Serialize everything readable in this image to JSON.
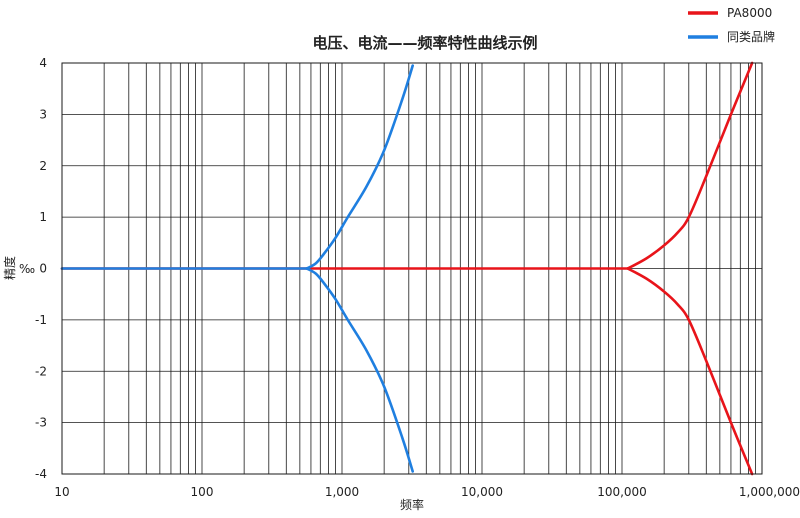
{
  "chart_data": {
    "type": "line",
    "title": "电压、电流——频率特性曲线示例",
    "xlabel": "频率",
    "ylabel": "精度",
    "yunit": "‰",
    "xscale": "log",
    "xlim": [
      10,
      1000000
    ],
    "ylim": [
      -4,
      4
    ],
    "grid": true,
    "legend_position": "top-right",
    "x_ticks": [
      {
        "value": 10,
        "label": "10"
      },
      {
        "value": 100,
        "label": "100"
      },
      {
        "value": 1000,
        "label": "1,000"
      },
      {
        "value": 10000,
        "label": "10,000"
      },
      {
        "value": 100000,
        "label": "100,000"
      },
      {
        "value": 1000000,
        "label": "1,000,000"
      }
    ],
    "y_ticks": [
      {
        "value": 4,
        "label": "4"
      },
      {
        "value": 3,
        "label": "3"
      },
      {
        "value": 2,
        "label": "2"
      },
      {
        "value": 1,
        "label": "1"
      },
      {
        "value": 0,
        "label": "0"
      },
      {
        "value": -1,
        "label": "-1"
      },
      {
        "value": -2,
        "label": "-2"
      },
      {
        "value": -3,
        "label": "-3"
      },
      {
        "value": -4,
        "label": "-4"
      }
    ],
    "legend": [
      {
        "name": "PA8000",
        "color": "#e8141a"
      },
      {
        "name": "同类品牌",
        "color": "#1f7fe0"
      }
    ],
    "series": [
      {
        "name": "PA8000",
        "color": "#e8141a",
        "segments": [
          {
            "x": [
              10,
              110000
            ],
            "y": [
              0,
              0
            ]
          },
          {
            "x": [
              110000,
              150000,
              200000,
              250000,
              300000,
              400000,
              600000,
              850000
            ],
            "y": [
              0,
              0.2,
              0.45,
              0.7,
              1.0,
              1.8,
              3.0,
              4.0
            ]
          },
          {
            "x": [
              110000,
              150000,
              200000,
              250000,
              300000,
              400000,
              600000,
              850000
            ],
            "y": [
              0,
              -0.2,
              -0.45,
              -0.7,
              -1.0,
              -1.8,
              -3.0,
              -4.0
            ]
          }
        ]
      },
      {
        "name": "同类品牌",
        "color": "#1f7fe0",
        "segments": [
          {
            "x": [
              10,
              560
            ],
            "y": [
              0,
              0
            ]
          },
          {
            "x": [
              560,
              650,
              750,
              900,
              1100,
              1500,
              2000,
              2700,
              3200
            ],
            "y": [
              0,
              0.1,
              0.3,
              0.6,
              1.0,
              1.6,
              2.3,
              3.3,
              3.95
            ]
          },
          {
            "x": [
              560,
              650,
              750,
              900,
              1100,
              1500,
              2000,
              2700,
              3200
            ],
            "y": [
              0,
              -0.1,
              -0.3,
              -0.6,
              -1.0,
              -1.6,
              -2.3,
              -3.3,
              -3.95
            ]
          }
        ]
      }
    ]
  }
}
